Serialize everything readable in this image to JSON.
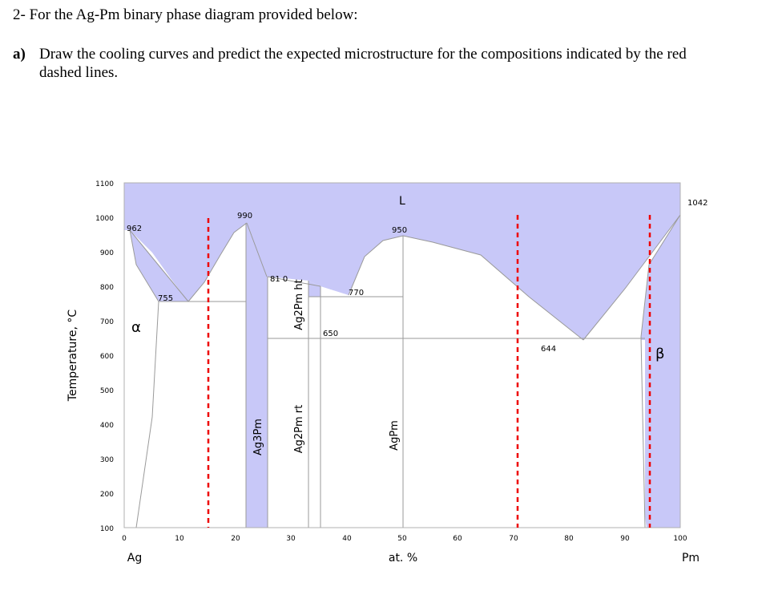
{
  "question": {
    "title": "2- For the Ag-Pm binary phase diagram provided below:",
    "part_label": "a)",
    "part_text_line1": "Draw the cooling curves and predict the expected microstructure for the compositions indicated by the red",
    "part_text_line2": "dashed lines."
  },
  "diagram": {
    "y_axis_label": "Temperature, °C",
    "x_axis_label": "at. %",
    "x_left_element": "Ag",
    "x_right_element": "Pm",
    "y_ticks": [
      "1100",
      "1000",
      "900",
      "800",
      "700",
      "600",
      "500",
      "400",
      "300",
      "200",
      "100"
    ],
    "x_ticks": [
      "0",
      "10",
      "20",
      "30",
      "40",
      "50",
      "60",
      "70",
      "80",
      "90",
      "100"
    ],
    "liquid_label": "L",
    "alpha_label": "α",
    "beta_label": "β",
    "compounds": {
      "ag3pm": "Ag3Pm",
      "ag2pm_ht": "Ag2Pm ht",
      "ag2pm_rt": "Ag2Pm rt",
      "agpm": "AgPm"
    },
    "temperatures": {
      "ag_melt": "962",
      "eutectic_1": "755",
      "ag3pm_melt": "990",
      "peritectic": "81 0",
      "eutectic_2": "770",
      "transition": "650",
      "agpm_melt": "950",
      "eutectic_3": "644",
      "pm_melt": "1042"
    },
    "colors": {
      "phase_fill": "#c8c8f8",
      "line": "#9a9a9a",
      "dashed": "#ee0000"
    }
  },
  "chart_data": {
    "type": "phase-diagram",
    "x_range": [
      0,
      100
    ],
    "y_range": [
      100,
      1100
    ],
    "marked_compositions_at_pct": [
      15,
      70,
      94
    ]
  }
}
